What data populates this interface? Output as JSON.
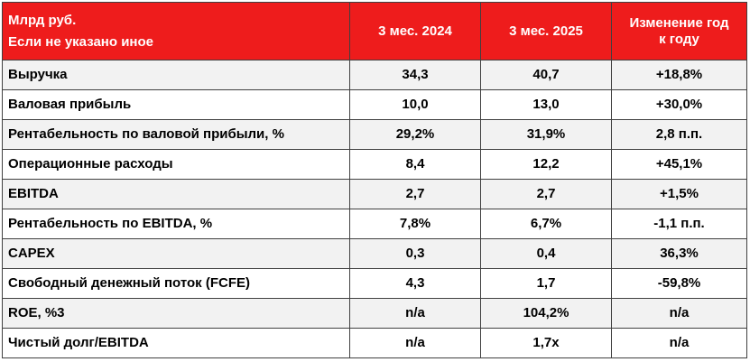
{
  "header": {
    "corner_line1": "Млрд руб.",
    "corner_line2": "Если не указано иное",
    "col_2024": "3 мес. 2024",
    "col_2025": "3 мес. 2025",
    "col_change_line1": "Изменение год",
    "col_change_line2": "к году"
  },
  "colors": {
    "header_bg": "#ee1c1c",
    "header_text": "#ffffff",
    "stripe": "#f2f2f2"
  },
  "rows": [
    {
      "label": "Выручка",
      "v2024": "34,3",
      "v2025": "40,7",
      "change": "+18,8%"
    },
    {
      "label": "Валовая прибыль",
      "v2024": "10,0",
      "v2025": "13,0",
      "change": "+30,0%"
    },
    {
      "label": "Рентабельность по валовой прибыли, %",
      "v2024": "29,2%",
      "v2025": "31,9%",
      "change": "2,8 п.п."
    },
    {
      "label": "Операционные расходы",
      "v2024": "8,4",
      "v2025": "12,2",
      "change": "+45,1%"
    },
    {
      "label": "EBITDA",
      "v2024": "2,7",
      "v2025": "2,7",
      "change": "+1,5%"
    },
    {
      "label": "Рентабельность по EBITDA, %",
      "v2024": "7,8%",
      "v2025": "6,7%",
      "change": "-1,1 п.п."
    },
    {
      "label": "CAPEX",
      "v2024": "0,3",
      "v2025": "0,4",
      "change": "36,3%"
    },
    {
      "label": "Свободный денежный поток (FCFE)",
      "v2024": "4,3",
      "v2025": "1,7",
      "change": "-59,8%"
    },
    {
      "label": "ROE, %3",
      "v2024": "n/a",
      "v2025": "104,2%",
      "change": "n/a"
    },
    {
      "label": "Чистый долг/EBITDA",
      "v2024": "n/a",
      "v2025": "1,7x",
      "change": "n/a"
    }
  ]
}
